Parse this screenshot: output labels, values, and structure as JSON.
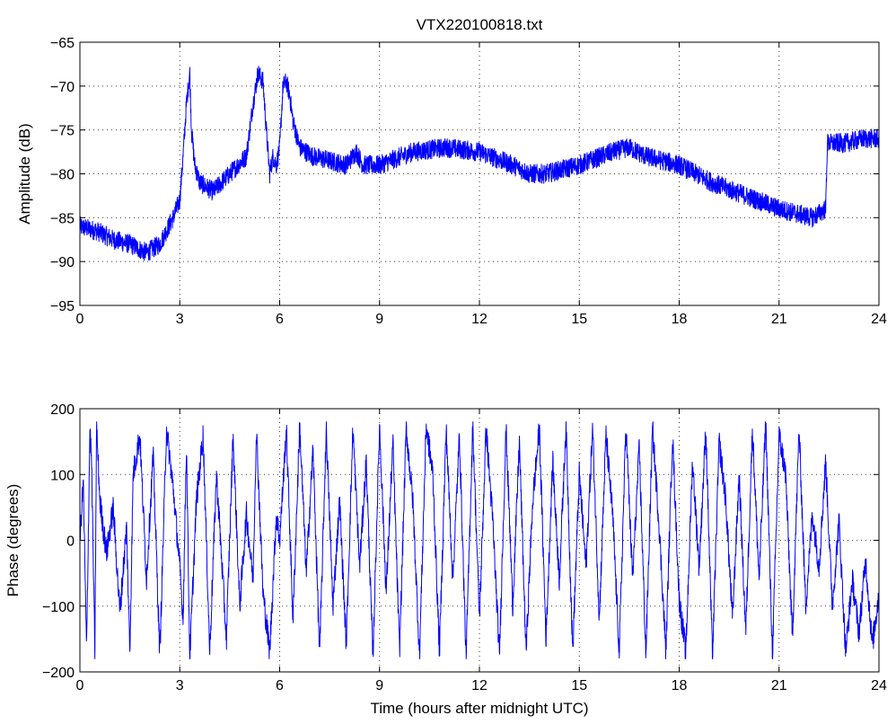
{
  "chart_data": [
    {
      "type": "line",
      "title": "VTX220100818.txt",
      "xlabel": "",
      "ylabel": "Amplitude (dB)",
      "xlim": [
        0,
        24
      ],
      "ylim": [
        -95,
        -65
      ],
      "xticks": [
        "0",
        "3",
        "6",
        "9",
        "12",
        "15",
        "18",
        "21",
        "24"
      ],
      "yticks": [
        "-95",
        "-90",
        "-85",
        "-80",
        "-75",
        "-70",
        "-65"
      ],
      "grid": true,
      "color": "#0000ff",
      "series": [
        {
          "x": [
            0,
            0.5,
            1,
            1.5,
            2,
            2.4,
            2.8,
            3.0,
            3.1,
            3.2,
            3.3,
            3.35,
            3.45,
            3.6,
            4,
            4.5,
            5,
            5.2,
            5.35,
            5.5,
            5.6,
            5.7,
            5.8,
            5.9,
            6.0,
            6.1,
            6.2,
            6.3,
            6.4,
            6.6,
            7,
            7.5,
            8,
            8.3,
            8.5,
            9,
            10,
            11,
            12,
            13,
            13.5,
            14,
            15,
            16,
            16.5,
            17,
            18,
            19,
            20,
            21,
            22,
            22.4,
            22.45,
            23,
            23.5,
            24
          ],
          "y": [
            -86,
            -86.5,
            -87.5,
            -88,
            -89,
            -88,
            -85,
            -83,
            -78,
            -72,
            -68.5,
            -75,
            -79,
            -81,
            -82,
            -80,
            -78,
            -72,
            -68.5,
            -69.5,
            -75,
            -80,
            -78,
            -79,
            -77,
            -70,
            -69.5,
            -71,
            -74,
            -77,
            -78,
            -78.5,
            -79,
            -77.5,
            -79,
            -79,
            -77.5,
            -77,
            -77.5,
            -79,
            -80,
            -80,
            -79,
            -77.5,
            -77,
            -78,
            -79,
            -81,
            -82.5,
            -84,
            -85,
            -84,
            -76.5,
            -76.5,
            -76,
            -76
          ]
        }
      ]
    },
    {
      "type": "line",
      "title": "",
      "xlabel": "Time (hours after midnight UTC)",
      "ylabel": "Phase (degrees)",
      "xlim": [
        0,
        24
      ],
      "ylim": [
        -200,
        200
      ],
      "xticks": [
        "0",
        "3",
        "6",
        "9",
        "12",
        "15",
        "18",
        "21",
        "24"
      ],
      "yticks": [
        "-200",
        "-100",
        "0",
        "100",
        "200"
      ],
      "grid": true,
      "color": "#0000ff",
      "series": [
        {
          "x": [
            0,
            0.1,
            0.2,
            0.3,
            0.35,
            0.45,
            0.5,
            0.6,
            0.8,
            1.0,
            1.2,
            1.4,
            1.5,
            1.6,
            1.8,
            2.0,
            2.2,
            2.4,
            2.6,
            2.8,
            3.0,
            3.1,
            3.2,
            3.3,
            3.5,
            3.7,
            3.9,
            4.1,
            4.2,
            4.4,
            4.6,
            4.8,
            5.0,
            5.2,
            5.3,
            5.5,
            5.7,
            5.9,
            6.0,
            6.2,
            6.4,
            6.6,
            6.8,
            7.0,
            7.2,
            7.4,
            7.6,
            7.8,
            8.0,
            8.2,
            8.4,
            8.6,
            8.8,
            9.0,
            9.2,
            9.4,
            9.6,
            9.8,
            10.0,
            10.2,
            10.4,
            10.6,
            10.8,
            11.0,
            11.2,
            11.4,
            11.6,
            11.8,
            12.0,
            12.2,
            12.4,
            12.6,
            12.8,
            13.0,
            13.2,
            13.4,
            13.6,
            13.8,
            14.0,
            14.2,
            14.4,
            14.6,
            14.8,
            15.0,
            15.2,
            15.4,
            15.6,
            15.8,
            16.0,
            16.2,
            16.4,
            16.6,
            16.8,
            17.0,
            17.2,
            17.4,
            17.6,
            17.8,
            18.0,
            18.2,
            18.4,
            18.6,
            18.8,
            19.0,
            19.2,
            19.4,
            19.6,
            19.8,
            20.0,
            20.2,
            20.4,
            20.6,
            20.8,
            21.0,
            21.2,
            21.4,
            21.6,
            21.8,
            22.0,
            22.2,
            22.4,
            22.6,
            22.8,
            23.0,
            23.2,
            23.4,
            23.6,
            23.8,
            24.0
          ],
          "y": [
            0,
            90,
            -170,
            170,
            120,
            -175,
            175,
            60,
            -20,
            50,
            -110,
            20,
            -170,
            100,
            160,
            -60,
            130,
            -175,
            170,
            80,
            -40,
            -120,
            150,
            -180,
            60,
            160,
            -170,
            100,
            20,
            -150,
            160,
            -100,
            40,
            -60,
            170,
            -80,
            -170,
            40,
            0,
            170,
            -120,
            175,
            -50,
            140,
            -175,
            170,
            -100,
            60,
            -160,
            170,
            -40,
            120,
            -180,
            175,
            -80,
            150,
            -170,
            170,
            60,
            -175,
            175,
            100,
            -170,
            170,
            -60,
            160,
            -180,
            175,
            -120,
            170,
            30,
            -175,
            170,
            -100,
            150,
            -170,
            60,
            170,
            -150,
            120,
            -60,
            175,
            -170,
            100,
            -40,
            170,
            -120,
            160,
            40,
            -170,
            175,
            -60,
            140,
            -175,
            170,
            20,
            -170,
            160,
            -90,
            -170,
            120,
            -40,
            170,
            -180,
            150,
            60,
            -120,
            100,
            -140,
            170,
            -60,
            180,
            -175,
            160,
            100,
            -150,
            170,
            -100,
            40,
            -40,
            120,
            -100,
            30,
            -170,
            -60,
            -140,
            -30,
            -160,
            -80
          ]
        }
      ]
    }
  ]
}
